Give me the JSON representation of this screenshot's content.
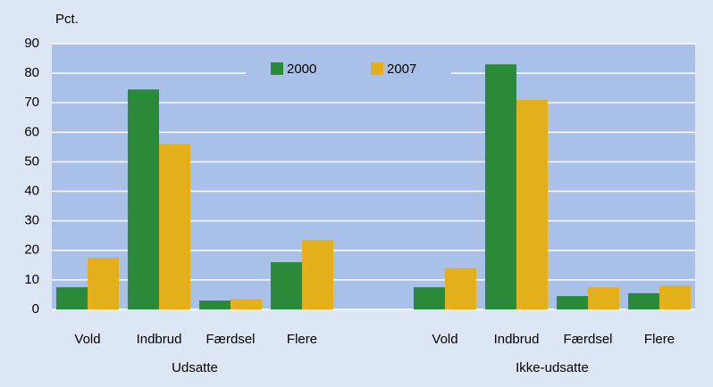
{
  "chart_data": {
    "type": "bar",
    "y_label": "Pct.",
    "categories": [
      "Vold",
      "Indbrud",
      "Færdsel",
      "Flere",
      null,
      "Vold",
      "Indbrud",
      "Færdsel",
      "Flere"
    ],
    "group_labels": [
      "Udsatte",
      "Ikke-udsatte"
    ],
    "series": [
      {
        "name": "2000",
        "color": "#2a8a3a",
        "values": [
          7.5,
          74.5,
          3,
          16,
          null,
          7.5,
          83,
          4.5,
          5.5
        ]
      },
      {
        "name": "2007",
        "color": "#e3b01c",
        "values": [
          17.5,
          56,
          3.5,
          23.5,
          null,
          14,
          71,
          7.5,
          8
        ]
      }
    ],
    "ylim": [
      0,
      90
    ],
    "yticks": [
      0,
      10,
      20,
      30,
      40,
      50,
      60,
      70,
      80,
      90
    ],
    "grid": true
  }
}
